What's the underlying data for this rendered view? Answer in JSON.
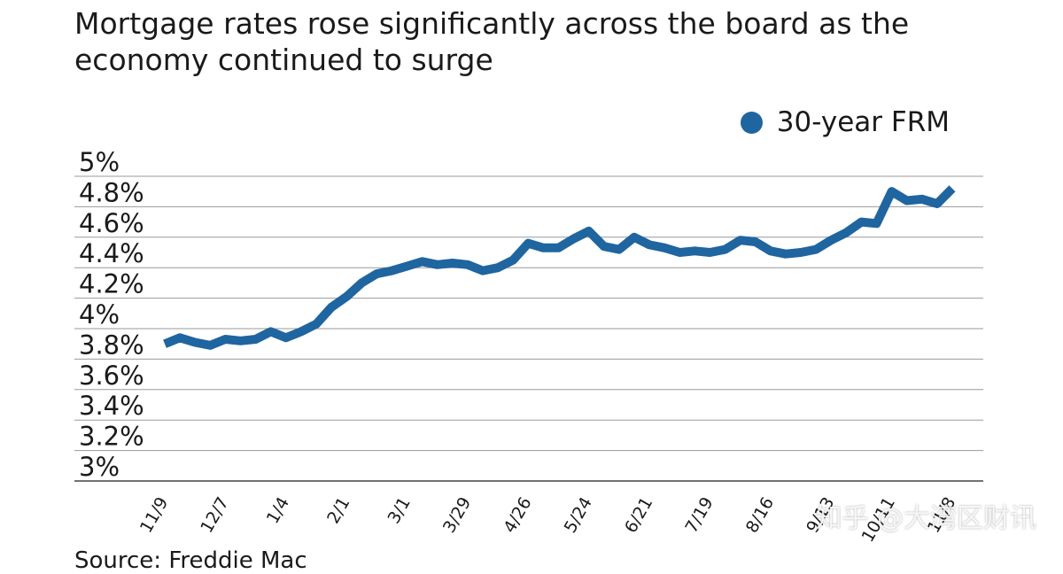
{
  "chart_data": {
    "type": "line",
    "title": "Mortgage rates rose significantly across the board as the economy continued to surge",
    "xlabel": "",
    "ylabel": "",
    "ylim": [
      3,
      5
    ],
    "y_ticks": [
      "3%",
      "3.2%",
      "3.4%",
      "3.6%",
      "3.8%",
      "4%",
      "4.2%",
      "4.4%",
      "4.6%",
      "4.8%",
      "5%"
    ],
    "x_tick_labels": [
      "11/9",
      "12/7",
      "1/4",
      "2/1",
      "3/1",
      "3/29",
      "4/26",
      "5/24",
      "6/21",
      "7/19",
      "8/16",
      "9/13",
      "10/11",
      "11/8"
    ],
    "grid": true,
    "legend_position": "top-right",
    "series": [
      {
        "name": "30-year FRM",
        "color": "#1f65a0",
        "values": [
          3.9,
          3.94,
          3.91,
          3.89,
          3.93,
          3.92,
          3.93,
          3.98,
          3.94,
          3.98,
          4.03,
          4.14,
          4.21,
          4.3,
          4.36,
          4.38,
          4.41,
          4.44,
          4.42,
          4.43,
          4.42,
          4.38,
          4.4,
          4.45,
          4.56,
          4.53,
          4.53,
          4.59,
          4.64,
          4.54,
          4.52,
          4.6,
          4.55,
          4.53,
          4.5,
          4.51,
          4.5,
          4.52,
          4.58,
          4.57,
          4.51,
          4.49,
          4.5,
          4.52,
          4.58,
          4.63,
          4.7,
          4.69,
          4.9,
          4.84,
          4.85,
          4.82,
          4.92
        ]
      }
    ]
  },
  "source": "Source: Freddie Mac",
  "watermark": "知乎 @大湾区财讯"
}
